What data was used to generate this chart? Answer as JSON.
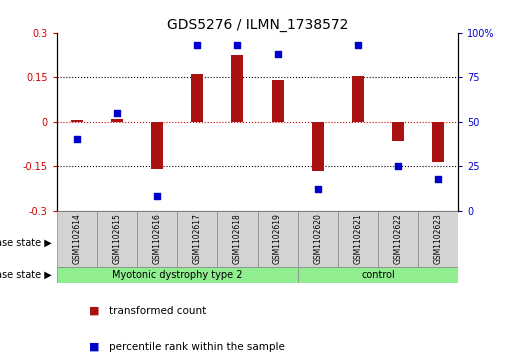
{
  "title": "GDS5276 / ILMN_1738572",
  "samples": [
    "GSM1102614",
    "GSM1102615",
    "GSM1102616",
    "GSM1102617",
    "GSM1102618",
    "GSM1102619",
    "GSM1102620",
    "GSM1102621",
    "GSM1102622",
    "GSM1102623"
  ],
  "bar_values": [
    0.005,
    0.01,
    -0.16,
    0.16,
    0.225,
    0.14,
    -0.165,
    0.155,
    -0.065,
    -0.135
  ],
  "dot_values": [
    40,
    55,
    8,
    93,
    93,
    88,
    12,
    93,
    25,
    18
  ],
  "bar_color": "#AA1111",
  "dot_color": "#0000CC",
  "ylim_left": [
    -0.3,
    0.3
  ],
  "ylim_right": [
    0,
    100
  ],
  "yticks_left": [
    -0.3,
    -0.15,
    0.0,
    0.15,
    0.3
  ],
  "yticks_right": [
    0,
    25,
    50,
    75,
    100
  ],
  "ytick_labels_left": [
    "-0.3",
    "-0.15",
    "0",
    "0.15",
    "0.3"
  ],
  "ytick_labels_right": [
    "0",
    "25",
    "50",
    "75",
    "100%"
  ],
  "groups": [
    {
      "label": "Myotonic dystrophy type 2",
      "start": 0,
      "end": 5
    },
    {
      "label": "control",
      "start": 6,
      "end": 9
    }
  ],
  "group_color": "#90EE90",
  "sample_box_color": "#D3D3D3",
  "disease_state_label": "disease state",
  "legend_bar_label": "transformed count",
  "legend_dot_label": "percentile rank within the sample",
  "bar_width": 0.3,
  "background_color": "#FFFFFF",
  "ylabel_left_color": "#CC0000",
  "ylabel_right_color": "#0000CC",
  "tick_fontsize": 7,
  "title_fontsize": 10
}
